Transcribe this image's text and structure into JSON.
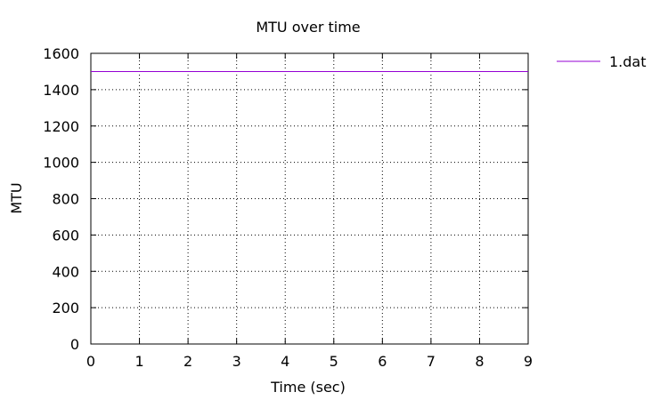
{
  "chart_data": {
    "type": "line",
    "title": "MTU over time",
    "xlabel": "Time (sec)",
    "ylabel": "MTU",
    "xlim": [
      0,
      9
    ],
    "ylim": [
      0,
      1600
    ],
    "x_ticks": [
      0,
      1,
      2,
      3,
      4,
      5,
      6,
      7,
      8,
      9
    ],
    "y_ticks": [
      0,
      200,
      400,
      600,
      800,
      1000,
      1200,
      1400,
      1600
    ],
    "grid": true,
    "legend_position": "top-right-outside",
    "series": [
      {
        "name": "1.dat",
        "color": "#9400d3",
        "x": [
          0,
          9
        ],
        "y": [
          1500,
          1500
        ]
      }
    ]
  }
}
